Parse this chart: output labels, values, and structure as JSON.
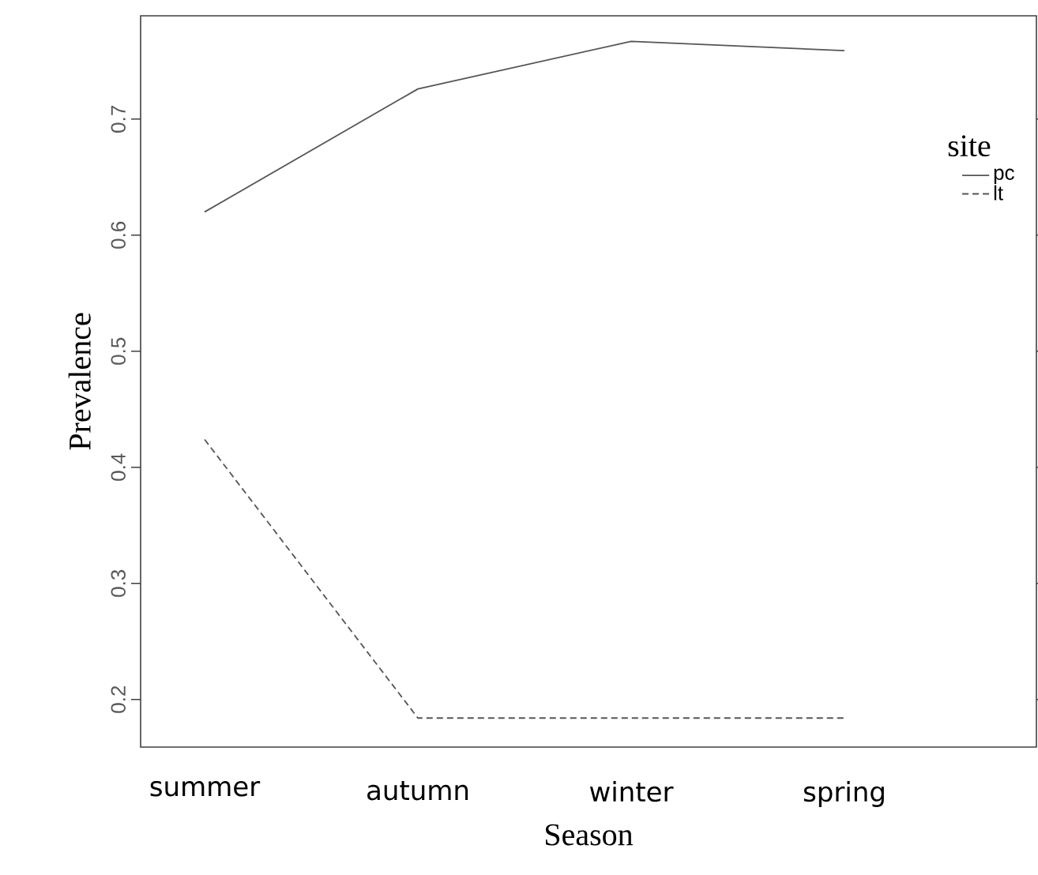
{
  "chart_data": {
    "type": "line",
    "xlabel": "Season",
    "ylabel": "Prevalence",
    "legend_title": "site",
    "legend": "top right",
    "categories": [
      "summer",
      "autumn",
      "winter",
      "spring"
    ],
    "series": [
      {
        "name": "pc",
        "color": "#555555",
        "line_style": "solid",
        "values": [
          0.62,
          0.726,
          0.767,
          0.759
        ]
      },
      {
        "name": "lt",
        "color": "#555555",
        "line_style": "dashed",
        "values": [
          0.424,
          0.184,
          0.184,
          0.184
        ]
      }
    ],
    "ylim": [
      0.159,
      0.789
    ],
    "yticks": [
      0.2,
      0.3,
      0.4,
      0.5,
      0.6,
      0.7
    ],
    "grid": false,
    "marker": "none"
  }
}
